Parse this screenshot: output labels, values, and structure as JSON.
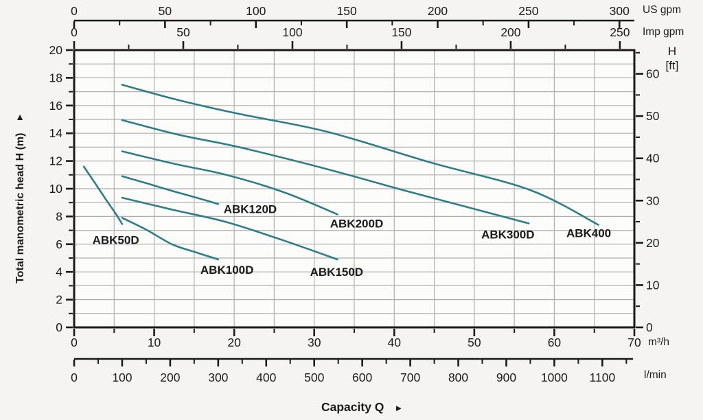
{
  "chart_data": {
    "type": "line",
    "title": "",
    "xlabel": "Capacity Q",
    "xlabel_arrow": "►",
    "ylabel": "Total manometric head H (m)",
    "ylabel_arrow": "▲",
    "x_range_m3h": [
      0,
      70
    ],
    "y_range_m": [
      0,
      20
    ],
    "grid": {
      "x_step_m3h": 5,
      "y_step_m": 1,
      "on": true
    },
    "axes": {
      "us_gpm": {
        "unit": "US gpm",
        "per_m3h": 4.4029,
        "ticks": [
          0,
          50,
          100,
          150,
          200,
          250,
          300
        ],
        "minor_step": 25,
        "minor_max": 300,
        "position": "top-outer"
      },
      "imp_gpm": {
        "unit": "Imp gpm",
        "per_m3h": 3.6662,
        "ticks": [
          0,
          50,
          100,
          150,
          200,
          250
        ],
        "minor_step": 25,
        "minor_max": 250,
        "position": "top-border"
      },
      "m3h": {
        "unit": "m³/h",
        "ticks": [
          0,
          10,
          20,
          30,
          40,
          50,
          60,
          70
        ],
        "minor_step": 5,
        "minor_max": 70,
        "position": "bottom-border"
      },
      "lmin": {
        "unit": "l/min",
        "per_m3h": 16.6667,
        "ticks": [
          0,
          100,
          200,
          300,
          400,
          500,
          600,
          700,
          800,
          900,
          1000,
          1100
        ],
        "minor_step": 50,
        "minor_max": 1150,
        "position": "bottom-outer"
      },
      "head_m": {
        "unit": "",
        "ticks": [
          0,
          2,
          4,
          6,
          8,
          10,
          12,
          14,
          16,
          18,
          20
        ],
        "minor_step": 1,
        "minor_max": 20,
        "position": "left"
      },
      "head_ft": {
        "unit_line1": "H",
        "unit_line2": "[ft]",
        "per_m": 3.2808,
        "ticks": [
          0,
          10,
          20,
          30,
          40,
          50,
          60
        ],
        "minor_step": 5,
        "minor_max": 65,
        "position": "right"
      }
    },
    "series": [
      {
        "name": "ABK50D",
        "points": [
          [
            1.2,
            11.6
          ],
          [
            2.5,
            10.5
          ],
          [
            4.0,
            9.2
          ],
          [
            5.2,
            8.2
          ],
          [
            6.0,
            7.45
          ]
        ],
        "label_pos": [
          5.2,
          6.3
        ]
      },
      {
        "name": "ABK100D",
        "points": [
          [
            6.0,
            7.9
          ],
          [
            9.0,
            7.05
          ],
          [
            12.2,
            6.0
          ],
          [
            15.0,
            5.45
          ],
          [
            18.0,
            4.9
          ]
        ],
        "label_pos": [
          19.1,
          4.15
        ]
      },
      {
        "name": "ABK120D",
        "points": [
          [
            6.0,
            10.9
          ],
          [
            9.0,
            10.4
          ],
          [
            12.2,
            9.85
          ],
          [
            15.0,
            9.4
          ],
          [
            18.0,
            8.9
          ]
        ],
        "label_pos": [
          22.0,
          8.55
        ]
      },
      {
        "name": "ABK150D",
        "points": [
          [
            6.0,
            9.35
          ],
          [
            12.2,
            8.5
          ],
          [
            19.0,
            7.6
          ],
          [
            26.0,
            6.3
          ],
          [
            32.9,
            4.9
          ]
        ],
        "label_pos": [
          32.8,
          4.0
        ]
      },
      {
        "name": "ABK200D",
        "points": [
          [
            6.0,
            12.7
          ],
          [
            12.5,
            11.8
          ],
          [
            19.0,
            11.0
          ],
          [
            26.2,
            9.75
          ],
          [
            32.9,
            8.15
          ]
        ],
        "label_pos": [
          35.3,
          7.5
        ]
      },
      {
        "name": "ABK300D",
        "points": [
          [
            6.0,
            14.95
          ],
          [
            13.0,
            13.9
          ],
          [
            20.6,
            13.0
          ],
          [
            31.7,
            11.4
          ],
          [
            41.1,
            9.9
          ],
          [
            49.6,
            8.6
          ],
          [
            56.8,
            7.5
          ]
        ],
        "label_pos": [
          54.2,
          6.7
        ]
      },
      {
        "name": "ABK400",
        "points": [
          [
            6.0,
            17.5
          ],
          [
            13.0,
            16.4
          ],
          [
            20.6,
            15.4
          ],
          [
            31.7,
            14.1
          ],
          [
            44.5,
            11.9
          ],
          [
            57.0,
            9.9
          ],
          [
            65.5,
            7.4
          ]
        ],
        "label_pos": [
          64.3,
          6.8
        ]
      }
    ],
    "line_color": "#2e7e84",
    "grid_color": "#b0afae",
    "axis_color": "#1a1a1a",
    "plot_bg": "#fcfcfb"
  }
}
